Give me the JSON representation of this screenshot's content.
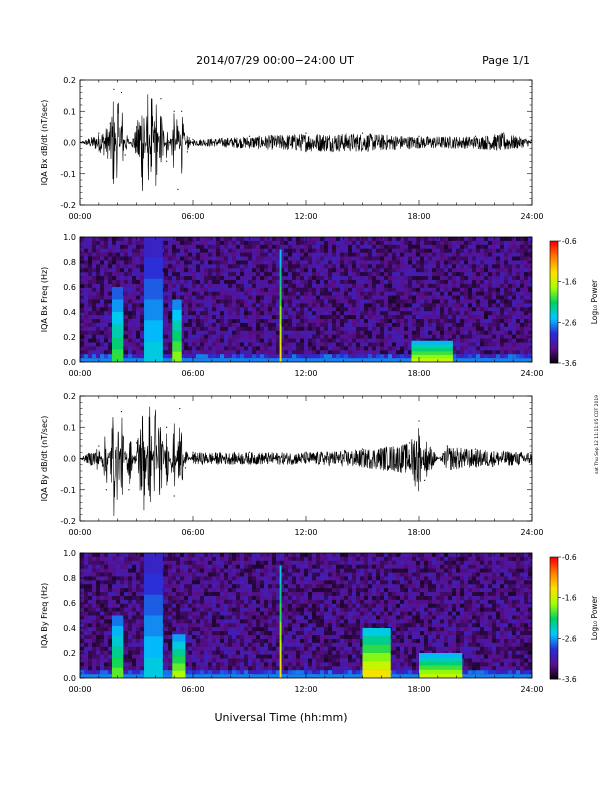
{
  "header": {
    "title": "2014/07/29  00:00−24:00 UT",
    "page": "Page 1/1"
  },
  "footer": {
    "xlabel": "Universal Time (hh:mm)"
  },
  "side_stamp": "sat Thu Sep 12 11:11:05 CDT 2019",
  "colorbar": {
    "label": "Log₁₀ Power",
    "ticks": [
      "-0.6",
      "-1.6",
      "-2.6",
      "-3.6"
    ],
    "colors": [
      "#000000",
      "#5a0f8c",
      "#2b2bd6",
      "#00c8ff",
      "#00d060",
      "#a8ff00",
      "#ffe000",
      "#ff8000",
      "#ff0000"
    ]
  },
  "chart_data": [
    {
      "type": "line",
      "title": "",
      "xlabel": "",
      "ylabel": "IQA Bx dB/dt (nT/sec)",
      "xlim": [
        0,
        24
      ],
      "ylim": [
        -0.2,
        0.2
      ],
      "x_ticks": [
        "00:00",
        "06:00",
        "12:00",
        "18:00",
        "24:00"
      ],
      "y_ticks": [
        "-0.2",
        "-0.1",
        "0.0",
        "0.1",
        "0.2"
      ],
      "grid": false,
      "series": [
        {
          "x": [
            0,
            1.0,
            1.6,
            1.8,
            2.0,
            2.2,
            2.4,
            3.0,
            3.4,
            3.6,
            3.8,
            4.0,
            4.3,
            4.6,
            5.0,
            5.2,
            5.4,
            5.7,
            6.0,
            9.0,
            12.0,
            15.0,
            18.0,
            21.0,
            22.5,
            24.0
          ],
          "y": [
            0.0,
            0.03,
            0.06,
            0.17,
            -0.2,
            0.16,
            -0.04,
            0.05,
            0.2,
            -0.2,
            0.2,
            -0.2,
            0.14,
            -0.06,
            0.1,
            -0.15,
            0.1,
            -0.03,
            0.01,
            0.02,
            0.03,
            0.03,
            0.02,
            0.02,
            0.03,
            0.01
          ]
        }
      ]
    },
    {
      "type": "heatmap",
      "title": "",
      "xlabel": "",
      "ylabel": "IQA Bx Freq (Hz)",
      "xlim": [
        0,
        24
      ],
      "ylim": [
        0,
        1.0
      ],
      "x_ticks": [
        "00:00",
        "06:00",
        "12:00",
        "18:00",
        "24:00"
      ],
      "y_ticks": [
        "0.0",
        "0.2",
        "0.4",
        "0.6",
        "0.8",
        "1.0"
      ],
      "value_range": [
        -3.6,
        -0.6
      ],
      "features": [
        {
          "t_start": 1.7,
          "t_end": 2.3,
          "f_max": 0.6,
          "value": -2.2
        },
        {
          "t_start": 3.4,
          "t_end": 4.4,
          "f_max": 1.0,
          "value": -1.8
        },
        {
          "t_start": 4.9,
          "t_end": 5.4,
          "f_max": 0.5,
          "value": -2.4
        },
        {
          "t_start": 10.6,
          "t_end": 10.7,
          "f_max": 0.9,
          "value": -2.8
        },
        {
          "t_start": 17.6,
          "t_end": 19.8,
          "f_max": 0.17,
          "value": -2.6
        }
      ]
    },
    {
      "type": "line",
      "title": "",
      "xlabel": "",
      "ylabel": "IQA By dB/dt (nT/sec)",
      "xlim": [
        0,
        24
      ],
      "ylim": [
        -0.2,
        0.2
      ],
      "x_ticks": [
        "00:00",
        "06:00",
        "12:00",
        "18:00",
        "24:00"
      ],
      "y_ticks": [
        "-0.2",
        "-0.1",
        "0.0",
        "0.1",
        "0.2"
      ],
      "grid": false,
      "series": [
        {
          "x": [
            0,
            1.0,
            1.4,
            1.8,
            2.0,
            2.2,
            2.6,
            3.0,
            3.4,
            3.7,
            4.0,
            4.2,
            4.6,
            5.0,
            5.3,
            5.6,
            6.0,
            9.0,
            12.0,
            15.0,
            17.5,
            18.0,
            18.3,
            19.5,
            21.0,
            24.0
          ],
          "y": [
            0.0,
            0.04,
            -0.1,
            0.2,
            -0.2,
            0.15,
            -0.1,
            0.05,
            0.2,
            -0.2,
            0.2,
            -0.2,
            0.1,
            -0.12,
            0.16,
            -0.03,
            0.02,
            0.02,
            0.02,
            0.03,
            0.05,
            0.12,
            -0.07,
            0.04,
            0.03,
            0.02
          ]
        }
      ]
    },
    {
      "type": "heatmap",
      "title": "",
      "xlabel": "",
      "ylabel": "IQA By Freq (Hz)",
      "xlim": [
        0,
        24
      ],
      "ylim": [
        0,
        1.0
      ],
      "x_ticks": [
        "00:00",
        "06:00",
        "12:00",
        "18:00",
        "24:00"
      ],
      "y_ticks": [
        "0.0",
        "0.2",
        "0.4",
        "0.6",
        "0.8",
        "1.0"
      ],
      "value_range": [
        -3.6,
        -0.6
      ],
      "features": [
        {
          "t_start": 1.7,
          "t_end": 2.3,
          "f_max": 0.5,
          "value": -2.3
        },
        {
          "t_start": 3.4,
          "t_end": 4.4,
          "f_max": 1.0,
          "value": -1.8
        },
        {
          "t_start": 4.9,
          "t_end": 5.6,
          "f_max": 0.35,
          "value": -2.5
        },
        {
          "t_start": 10.6,
          "t_end": 10.7,
          "f_max": 0.9,
          "value": -2.8
        },
        {
          "t_start": 15.0,
          "t_end": 16.5,
          "f_max": 0.4,
          "value": -2.8
        },
        {
          "t_start": 18.0,
          "t_end": 20.3,
          "f_max": 0.2,
          "value": -2.6
        }
      ]
    }
  ]
}
